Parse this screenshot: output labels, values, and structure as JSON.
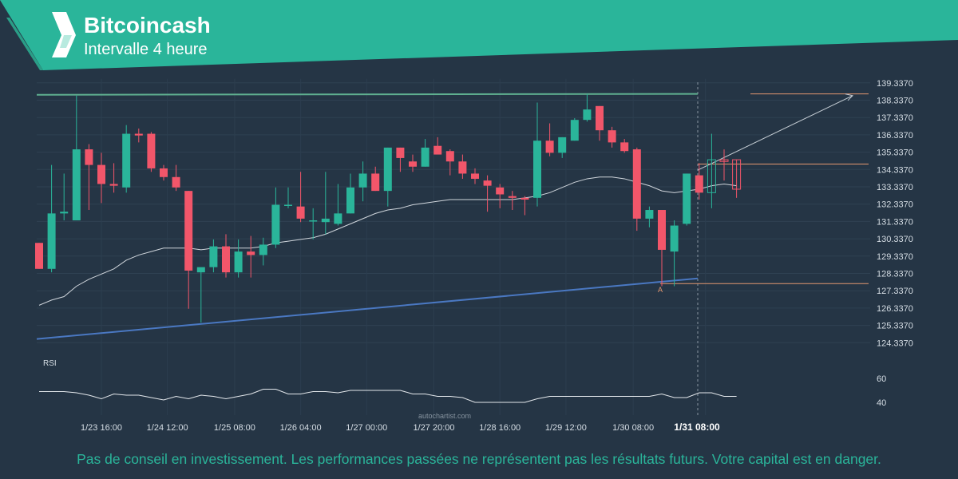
{
  "header": {
    "title": "Bitcoincash",
    "subtitle": "Intervalle 4 heure"
  },
  "footer": {
    "disclaimer": "Pas de conseil en investissement. Les performances passées ne représentent pas les résultats futurs. Votre capital est en danger."
  },
  "colors": {
    "background": "#253545",
    "brand": "#2ab59a",
    "bull": "#2ab59a",
    "bear": "#f2566a",
    "resistance": "#5fb090",
    "support": "#4a78c2",
    "level": "#e49770",
    "ma": "#d0d6dc"
  },
  "chart_data": {
    "type": "candlestick",
    "ylim": [
      123.3,
      139.8
    ],
    "y_ticks": [
      "139.3370",
      "138.3370",
      "137.3370",
      "136.3370",
      "135.3370",
      "134.3370",
      "133.3370",
      "132.3370",
      "131.3370",
      "130.3370",
      "129.3370",
      "128.3370",
      "127.3370",
      "126.3370",
      "125.3370",
      "124.3370"
    ],
    "x_ticks": [
      "1/23 16:00",
      "1/24 12:00",
      "1/25 08:00",
      "1/26 04:00",
      "1/27 00:00",
      "1/27 20:00",
      "1/28 16:00",
      "1/29 12:00",
      "1/30 08:00",
      "1/31 08:00"
    ],
    "watermark": "autochartist.com",
    "pattern_label": "A",
    "candles": [
      {
        "o": 130.1,
        "h": 130.1,
        "l": 128.6,
        "c": 128.6
      },
      {
        "o": 128.6,
        "h": 134.6,
        "l": 128.4,
        "c": 131.8
      },
      {
        "o": 131.8,
        "h": 134.1,
        "l": 131.4,
        "c": 131.9
      },
      {
        "o": 131.4,
        "h": 138.6,
        "l": 131.4,
        "c": 135.5
      },
      {
        "o": 135.5,
        "h": 135.8,
        "l": 132.0,
        "c": 134.6
      },
      {
        "o": 134.6,
        "h": 135.3,
        "l": 132.4,
        "c": 133.5
      },
      {
        "o": 133.5,
        "h": 134.7,
        "l": 133.0,
        "c": 133.4
      },
      {
        "o": 133.3,
        "h": 136.9,
        "l": 133.0,
        "c": 136.4
      },
      {
        "o": 136.4,
        "h": 136.7,
        "l": 135.9,
        "c": 136.3
      },
      {
        "o": 136.4,
        "h": 136.5,
        "l": 134.2,
        "c": 134.4
      },
      {
        "o": 134.4,
        "h": 134.6,
        "l": 133.7,
        "c": 133.9
      },
      {
        "o": 133.9,
        "h": 134.6,
        "l": 133.1,
        "c": 133.3
      },
      {
        "o": 133.1,
        "h": 133.1,
        "l": 126.3,
        "c": 128.5
      },
      {
        "o": 128.4,
        "h": 128.6,
        "l": 125.5,
        "c": 128.7
      },
      {
        "o": 128.7,
        "h": 130.3,
        "l": 128.4,
        "c": 129.9
      },
      {
        "o": 129.9,
        "h": 130.6,
        "l": 128.1,
        "c": 128.4
      },
      {
        "o": 128.4,
        "h": 130.3,
        "l": 128.1,
        "c": 129.6
      },
      {
        "o": 129.6,
        "h": 130.5,
        "l": 128.1,
        "c": 129.4
      },
      {
        "o": 129.4,
        "h": 130.4,
        "l": 128.8,
        "c": 130.0
      },
      {
        "o": 130.0,
        "h": 133.3,
        "l": 129.8,
        "c": 132.3
      },
      {
        "o": 132.3,
        "h": 133.3,
        "l": 132.1,
        "c": 132.3
      },
      {
        "o": 132.2,
        "h": 134.2,
        "l": 131.3,
        "c": 131.5
      },
      {
        "o": 131.4,
        "h": 132.1,
        "l": 130.3,
        "c": 131.4
      },
      {
        "o": 131.3,
        "h": 134.2,
        "l": 130.6,
        "c": 131.5
      },
      {
        "o": 131.2,
        "h": 133.5,
        "l": 131.1,
        "c": 131.8
      },
      {
        "o": 131.8,
        "h": 134.1,
        "l": 131.8,
        "c": 133.3
      },
      {
        "o": 133.3,
        "h": 134.8,
        "l": 132.5,
        "c": 134.1
      },
      {
        "o": 134.1,
        "h": 134.5,
        "l": 133.1,
        "c": 133.1
      },
      {
        "o": 133.1,
        "h": 135.6,
        "l": 132.2,
        "c": 135.6
      },
      {
        "o": 135.6,
        "h": 135.6,
        "l": 134.2,
        "c": 135.0
      },
      {
        "o": 134.8,
        "h": 135.2,
        "l": 134.2,
        "c": 134.5
      },
      {
        "o": 134.5,
        "h": 136.1,
        "l": 134.5,
        "c": 135.6
      },
      {
        "o": 135.7,
        "h": 136.2,
        "l": 135.3,
        "c": 135.2
      },
      {
        "o": 135.4,
        "h": 135.5,
        "l": 134.0,
        "c": 134.8
      },
      {
        "o": 134.8,
        "h": 135.2,
        "l": 133.8,
        "c": 134.1
      },
      {
        "o": 134.1,
        "h": 134.4,
        "l": 133.5,
        "c": 133.8
      },
      {
        "o": 133.7,
        "h": 134.0,
        "l": 131.9,
        "c": 133.4
      },
      {
        "o": 133.3,
        "h": 133.5,
        "l": 132.1,
        "c": 132.9
      },
      {
        "o": 132.8,
        "h": 133.1,
        "l": 132.0,
        "c": 132.7
      },
      {
        "o": 132.7,
        "h": 132.8,
        "l": 131.7,
        "c": 132.6
      },
      {
        "o": 132.7,
        "h": 138.2,
        "l": 132.2,
        "c": 136.0
      },
      {
        "o": 136.0,
        "h": 137.0,
        "l": 135.1,
        "c": 135.3
      },
      {
        "o": 135.3,
        "h": 136.2,
        "l": 135.0,
        "c": 136.2
      },
      {
        "o": 136.0,
        "h": 137.3,
        "l": 136.0,
        "c": 137.2
      },
      {
        "o": 137.2,
        "h": 138.7,
        "l": 137.1,
        "c": 137.8
      },
      {
        "o": 138.0,
        "h": 138.0,
        "l": 136.0,
        "c": 136.6
      },
      {
        "o": 136.6,
        "h": 136.8,
        "l": 135.6,
        "c": 135.9
      },
      {
        "o": 135.9,
        "h": 136.1,
        "l": 135.3,
        "c": 135.4
      },
      {
        "o": 135.5,
        "h": 135.6,
        "l": 130.8,
        "c": 131.5
      },
      {
        "o": 131.5,
        "h": 132.2,
        "l": 131.0,
        "c": 132.0
      },
      {
        "o": 132.0,
        "h": 132.0,
        "l": 127.6,
        "c": 129.7
      },
      {
        "o": 129.6,
        "h": 131.4,
        "l": 127.6,
        "c": 131.1
      },
      {
        "o": 131.2,
        "h": 134.1,
        "l": 131.1,
        "c": 134.1
      },
      {
        "o": 134.0,
        "h": 134.7,
        "l": 132.6,
        "c": 133.0
      },
      {
        "o": 133.0,
        "h": 136.4,
        "l": 132.1,
        "c": 134.9
      },
      {
        "o": 134.9,
        "h": 135.5,
        "l": 133.7,
        "c": 134.8
      },
      {
        "o": 134.9,
        "h": 134.9,
        "l": 132.7,
        "c": 133.2
      }
    ],
    "moving_average": [
      126.5,
      126.8,
      127.0,
      127.6,
      128.0,
      128.3,
      128.6,
      129.1,
      129.4,
      129.6,
      129.8,
      129.8,
      129.8,
      129.7,
      129.8,
      129.8,
      129.8,
      129.8,
      129.9,
      130.1,
      130.2,
      130.3,
      130.4,
      130.6,
      130.9,
      131.2,
      131.5,
      131.8,
      132.0,
      132.1,
      132.3,
      132.4,
      132.5,
      132.6,
      132.6,
      132.6,
      132.6,
      132.6,
      132.6,
      132.7,
      132.8,
      133.0,
      133.3,
      133.6,
      133.8,
      133.9,
      133.9,
      133.8,
      133.6,
      133.4,
      133.1,
      133.0,
      133.1,
      133.2,
      133.4,
      133.5,
      133.4
    ],
    "rsi": [
      49,
      49,
      49,
      48,
      46,
      43,
      47,
      46,
      46,
      44,
      42,
      45,
      43,
      46,
      45,
      43,
      45,
      47,
      51,
      51,
      47,
      47,
      49,
      49,
      48,
      50,
      50,
      50,
      50,
      50,
      47,
      47,
      45,
      45,
      44,
      40,
      40,
      40,
      40,
      40,
      43,
      45,
      45,
      45,
      45,
      45,
      45,
      45,
      45,
      45,
      47,
      44,
      44,
      48,
      48,
      45,
      45
    ],
    "rsi_axis": {
      "label": "RSI",
      "ticks": [
        "60",
        "40"
      ],
      "range": [
        30,
        70
      ]
    },
    "resistance_line": {
      "y_start": 138.65,
      "y_end": 138.7
    },
    "support_line": {
      "y_start": 124.55,
      "y_end": 128.05
    },
    "levels": [
      {
        "name": "support-level",
        "value": 127.75
      },
      {
        "name": "resistance-level",
        "value": 134.65
      },
      {
        "name": "target-level",
        "value": 138.7
      }
    ],
    "forecast_arrow": {
      "from": 134.3,
      "to": 138.6
    }
  }
}
